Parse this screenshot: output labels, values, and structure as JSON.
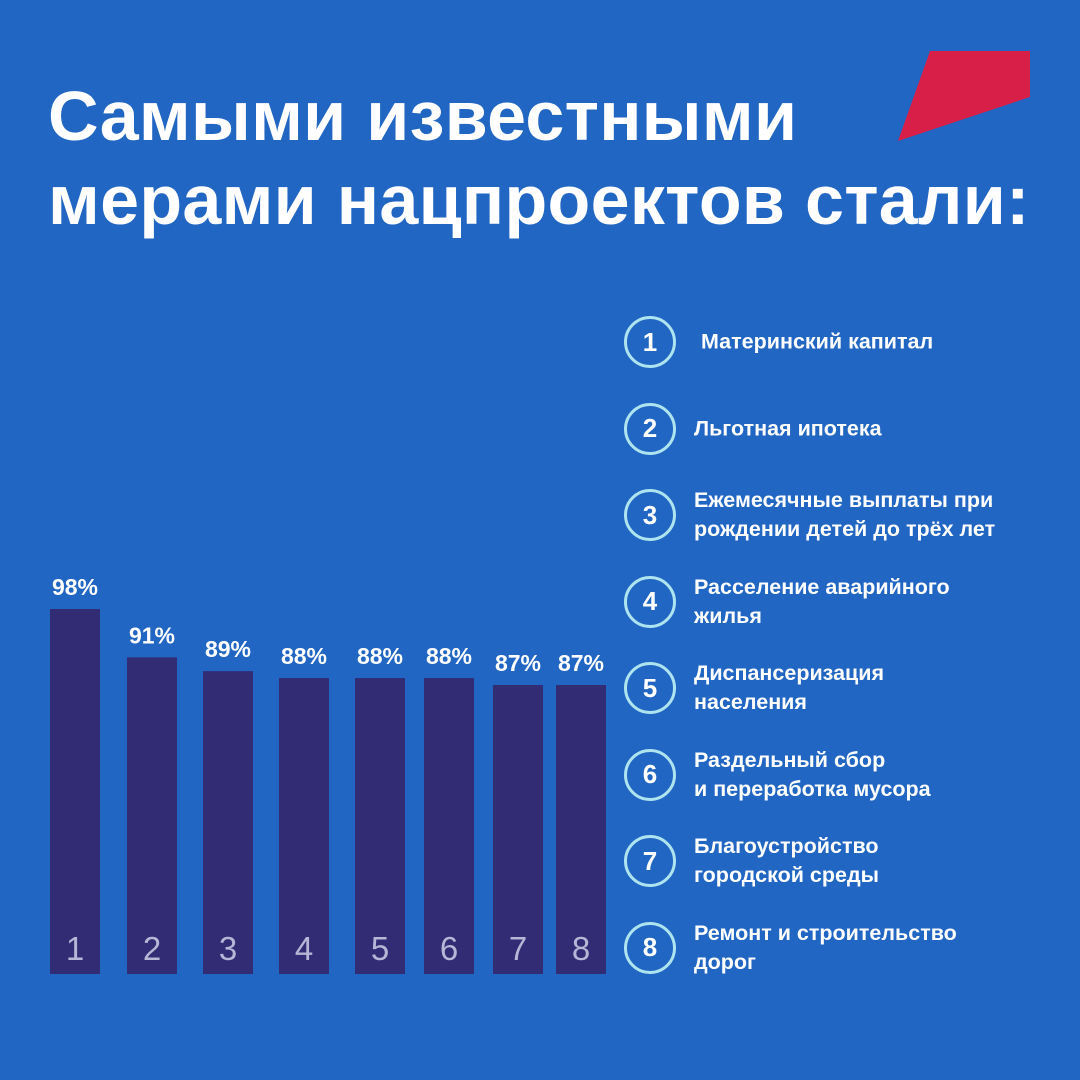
{
  "title": {
    "line1": "Самыми известными",
    "line2": "мерами нацпроектов стали:"
  },
  "colors": {
    "background": "#2166c2",
    "bar": "#312c73",
    "logo": "#d81f48",
    "circle_border": "#aee4ef",
    "bar_index_text": "#b6b6d6"
  },
  "chart_data": {
    "type": "bar",
    "categories": [
      "1",
      "2",
      "3",
      "4",
      "5",
      "6",
      "7",
      "8"
    ],
    "values": [
      98,
      91,
      89,
      88,
      88,
      88,
      87,
      87
    ],
    "value_labels": [
      "98%",
      "91%",
      "89%",
      "88%",
      "88%",
      "88%",
      "87%",
      "87%"
    ],
    "unit": "%",
    "ylim": [
      0,
      98
    ],
    "grid": false,
    "legend_position": "right",
    "legend": [
      {
        "number": "1",
        "label": "Материнский капитал"
      },
      {
        "number": "2",
        "label": "Льготная ипотека"
      },
      {
        "number": "3",
        "label": "Ежемесячные выплаты при\nрождении детей до трёх лет"
      },
      {
        "number": "4",
        "label": "Расселение аварийного\nжилья"
      },
      {
        "number": "5",
        "label": "Диспансеризация\nнаселения"
      },
      {
        "number": "6",
        "label": "Раздельный сбор\nи переработка мусора"
      },
      {
        "number": "7",
        "label": "Благоустройство\nгородской среды"
      },
      {
        "number": "8",
        "label": "Ремонт и строительство\nдорог"
      }
    ]
  }
}
